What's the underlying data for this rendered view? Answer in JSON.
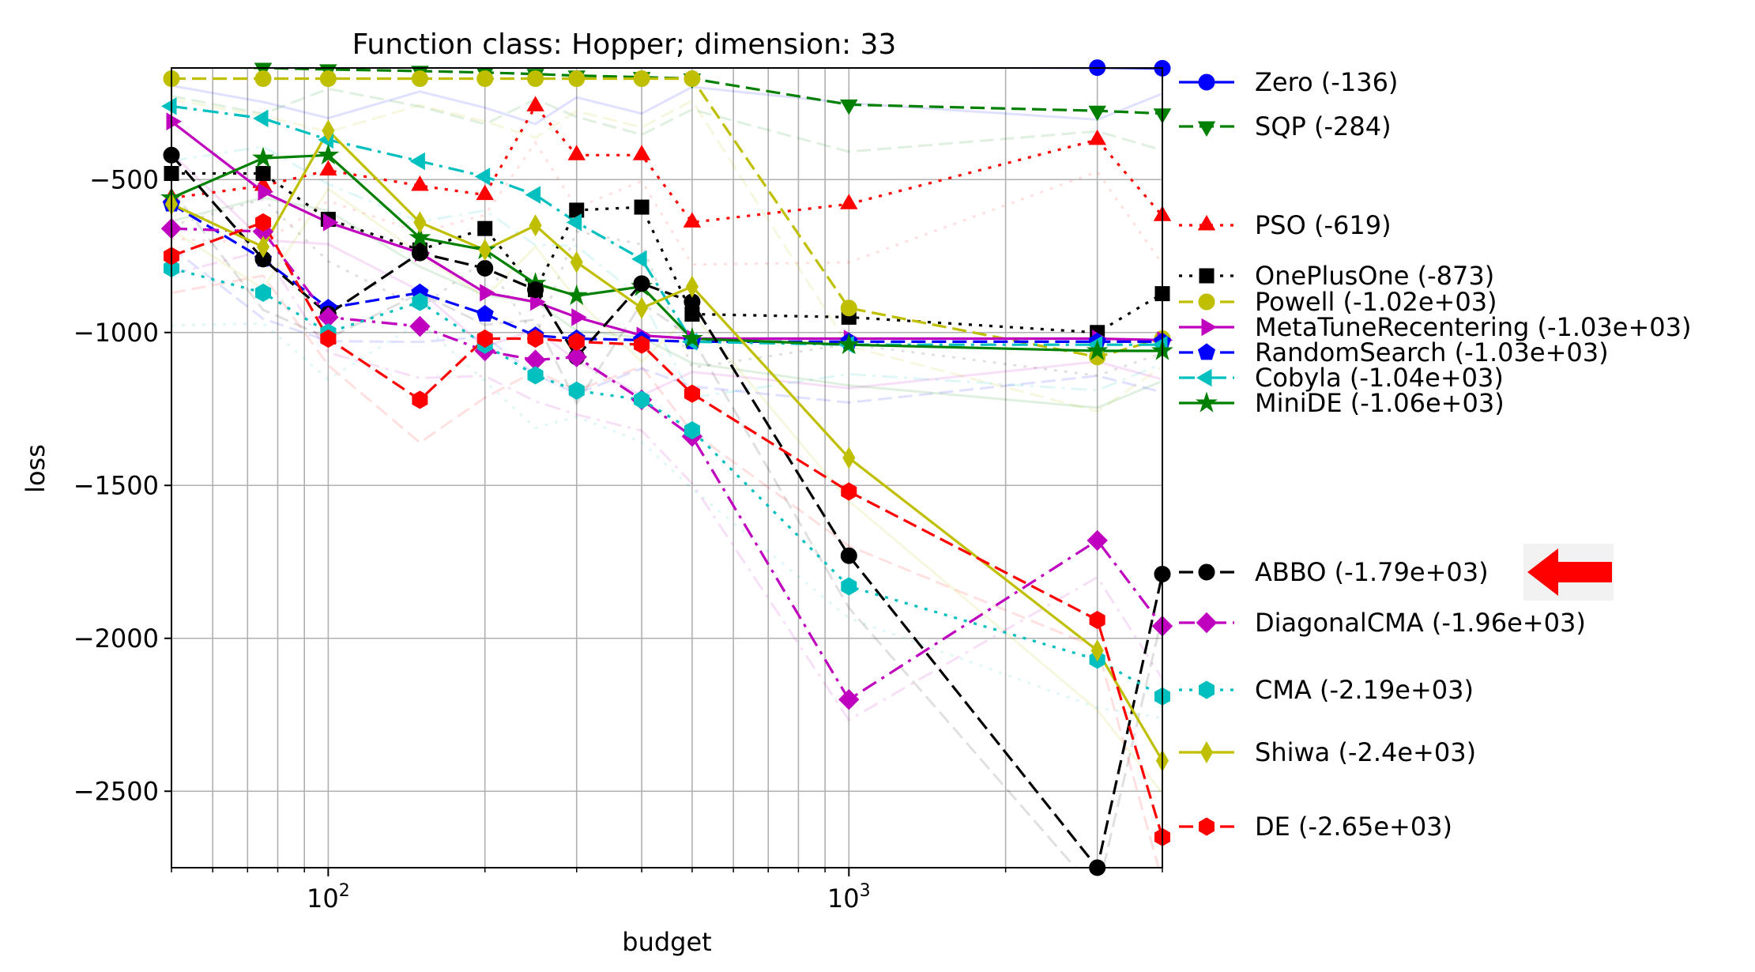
{
  "chart_data": {
    "type": "line",
    "title": "Function class: Hopper; dimension: 33",
    "xlabel": "budget",
    "ylabel": "loss",
    "xscale": "log",
    "xlim": [
      50,
      4000
    ],
    "ylim": [
      -2750,
      -135
    ],
    "grid": true,
    "legend_placement": "right-outside",
    "x_major_ticks": [
      {
        "value": 100,
        "label": "10^2"
      },
      {
        "value": 1000,
        "label": "10^3"
      }
    ],
    "y_ticks": [
      -500,
      -1000,
      -1500,
      -2000,
      -2500
    ],
    "y_tick_labels": [
      "−500",
      "−1000",
      "−1500",
      "−2000",
      "−2500"
    ],
    "annotation": {
      "type": "arrow",
      "color": "#ff0000",
      "points_to": "ABBO (-1.79e+03)"
    },
    "x": [
      50,
      75,
      100,
      150,
      200,
      250,
      300,
      400,
      500,
      1000,
      3000,
      4000
    ],
    "series": [
      {
        "name": "Zero (-136)",
        "color": "#0000ff",
        "dash": "solid",
        "marker": "circle",
        "values": [
          -133,
          -133,
          -133,
          -133,
          -133,
          -133,
          -133,
          -133,
          -133,
          -133,
          -134,
          -136
        ]
      },
      {
        "name": "SQP (-284)",
        "color": "#008000",
        "dash": "dashed",
        "marker": "triangle-down",
        "values": [
          -130,
          -135,
          -140,
          -145,
          -150,
          -155,
          -160,
          -165,
          -170,
          -255,
          -275,
          -284
        ]
      },
      {
        "name": "PSO (-619)",
        "color": "#ff0000",
        "dash": "dotted",
        "marker": "triangle-up",
        "values": [
          -560,
          -520,
          -470,
          -520,
          -550,
          -260,
          -420,
          -420,
          -640,
          -580,
          -370,
          -619
        ]
      },
      {
        "name": "OnePlusOne (-873)",
        "color": "#000000",
        "dash": "dotted",
        "marker": "square",
        "values": [
          -480,
          -480,
          -630,
          -730,
          -660,
          -860,
          -600,
          -590,
          -940,
          -950,
          -1000,
          -873
        ]
      },
      {
        "name": "Powell (-1.02e+03)",
        "color": "#bfbf00",
        "dash": "dashed",
        "marker": "circle",
        "values": [
          -170,
          -170,
          -170,
          -170,
          -170,
          -170,
          -170,
          -170,
          -170,
          -920,
          -1080,
          -1020
        ]
      },
      {
        "name": "MetaTuneRecentering (-1.03e+03)",
        "color": "#bf00bf",
        "dash": "solid",
        "marker": "triangle-right",
        "values": [
          -310,
          -540,
          -640,
          -740,
          -870,
          -900,
          -950,
          -1010,
          -1020,
          -1020,
          -1020,
          -1025
        ]
      },
      {
        "name": "RandomSearch (-1.03e+03)",
        "color": "#0000ff",
        "dash": "dashed",
        "marker": "pentagon",
        "values": [
          -580,
          -760,
          -920,
          -870,
          -940,
          -1010,
          -1020,
          -1025,
          -1030,
          -1030,
          -1030,
          -1030
        ]
      },
      {
        "name": "Cobyla (-1.04e+03)",
        "color": "#00bfbf",
        "dash": "dashdot",
        "marker": "triangle-left",
        "values": [
          -260,
          -300,
          -370,
          -440,
          -490,
          -550,
          -640,
          -760,
          -1030,
          -1040,
          -1040,
          -1040
        ]
      },
      {
        "name": "MiniDE (-1.06e+03)",
        "color": "#008000",
        "dash": "solid",
        "marker": "star",
        "values": [
          -560,
          -430,
          -420,
          -690,
          -730,
          -840,
          -880,
          -850,
          -1020,
          -1040,
          -1060,
          -1060
        ]
      },
      {
        "name": "ABBO (-1.79e+03)",
        "color": "#000000",
        "dash": "dashed",
        "marker": "circle",
        "values": [
          -420,
          -760,
          -940,
          -740,
          -790,
          -860,
          -1080,
          -840,
          -900,
          -1730,
          -2750,
          -1790
        ]
      },
      {
        "name": "DiagonalCMA (-1.96e+03)",
        "color": "#bf00bf",
        "dash": "dashdot",
        "marker": "diamond",
        "values": [
          -660,
          -670,
          -950,
          -980,
          -1060,
          -1090,
          -1080,
          -1220,
          -1340,
          -2200,
          -1680,
          -1960
        ]
      },
      {
        "name": "CMA (-2.19e+03)",
        "color": "#00bfbf",
        "dash": "dotted",
        "marker": "hexagon",
        "values": [
          -790,
          -870,
          -1000,
          -900,
          -1040,
          -1140,
          -1190,
          -1220,
          -1320,
          -1830,
          -2070,
          -2190
        ]
      },
      {
        "name": "Shiwa (-2.4e+03)",
        "color": "#bfbf00",
        "dash": "solid",
        "marker": "diamond-thin",
        "values": [
          -580,
          -720,
          -340,
          -640,
          -730,
          -650,
          -770,
          -920,
          -850,
          -1410,
          -2040,
          -2400
        ]
      },
      {
        "name": "DE (-2.65e+03)",
        "color": "#ff0000",
        "dash": "dashed",
        "marker": "hexagon",
        "values": [
          -750,
          -640,
          -1020,
          -1220,
          -1020,
          -1020,
          -1030,
          -1040,
          -1200,
          -1520,
          -1940,
          -2650
        ]
      }
    ]
  }
}
